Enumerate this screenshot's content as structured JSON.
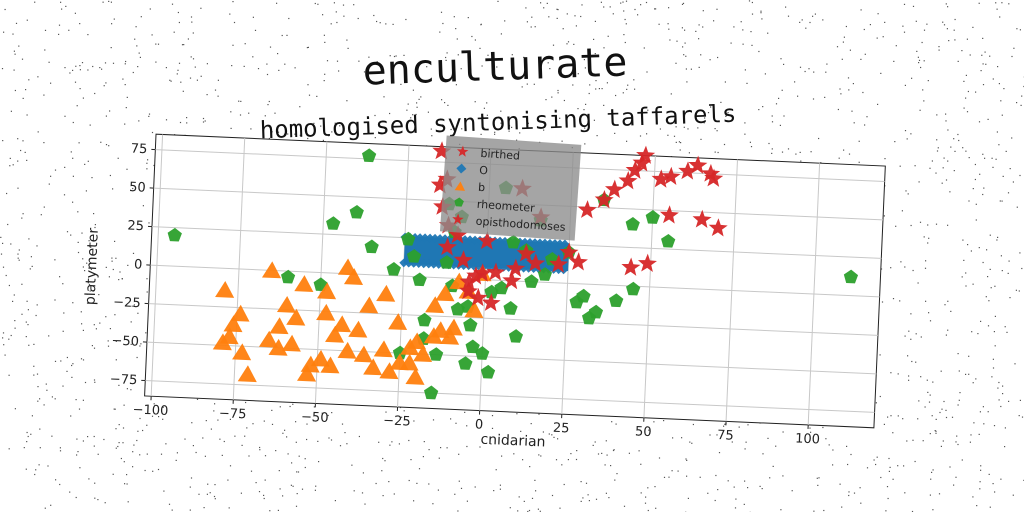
{
  "chart_data": {
    "type": "scatter",
    "title": "enculturate",
    "subtitle": "homologised syntonising taffarels",
    "xlabel": "cnidarian",
    "ylabel": "platymeter",
    "xlim": [
      -102,
      120
    ],
    "ylim": [
      -85,
      85
    ],
    "xticks": [
      -100,
      -75,
      -50,
      -25,
      0,
      25,
      50,
      75,
      100
    ],
    "yticks": [
      -75,
      -50,
      -25,
      0,
      25,
      50,
      75
    ],
    "grid": true,
    "legend_position": "top-center",
    "series": [
      {
        "name": "birthed",
        "marker": "star",
        "color": "#d62728",
        "points": [
          [
            -15,
            82
          ],
          [
            -13,
            64
          ],
          [
            -14,
            46
          ],
          [
            -12,
            34
          ],
          [
            -9,
            28
          ],
          [
            -12,
            20
          ],
          [
            -7,
            12
          ],
          [
            -5,
            -2
          ],
          [
            -3,
            2
          ],
          [
            -1,
            4
          ],
          [
            3,
            5
          ],
          [
            8,
            0
          ],
          [
            9,
            8
          ],
          [
            12,
            18
          ],
          [
            15,
            12
          ],
          [
            22,
            12
          ],
          [
            25,
            20
          ],
          [
            28,
            14
          ],
          [
            10,
            60
          ],
          [
            16,
            42
          ],
          [
            30,
            48
          ],
          [
            35,
            55
          ],
          [
            38,
            62
          ],
          [
            42,
            68
          ],
          [
            44,
            75
          ],
          [
            46,
            80
          ],
          [
            47,
            85
          ],
          [
            52,
            70
          ],
          [
            55,
            72
          ],
          [
            60,
            76
          ],
          [
            63,
            80
          ],
          [
            67,
            75
          ],
          [
            68,
            72
          ],
          [
            55,
            47
          ],
          [
            65,
            45
          ],
          [
            70,
            40
          ],
          [
            44,
            12
          ],
          [
            49,
            15
          ],
          [
            -15,
            60
          ],
          [
            -2,
            -12
          ],
          [
            -5,
            -8
          ],
          [
            2,
            -15
          ],
          [
            0,
            25
          ]
        ]
      },
      {
        "name": "b",
        "marker": "triangle",
        "color": "#ff7f0e",
        "points": [
          [
            -79,
            -14
          ],
          [
            -74,
            -29
          ],
          [
            -76,
            -36
          ],
          [
            -77,
            -44
          ],
          [
            -79,
            -48
          ],
          [
            -73,
            -54
          ],
          [
            -71,
            -68
          ],
          [
            -65,
            -45
          ],
          [
            -62,
            -50
          ],
          [
            -60,
            -22
          ],
          [
            -62,
            -36
          ],
          [
            -57,
            -30
          ],
          [
            -58,
            -47
          ],
          [
            -53,
            -66
          ],
          [
            -52,
            -60
          ],
          [
            -49,
            -56
          ],
          [
            -45,
            -40
          ],
          [
            -46,
            -60
          ],
          [
            -48,
            -26
          ],
          [
            -43,
            -33
          ],
          [
            -41,
            -50
          ],
          [
            -38,
            -36
          ],
          [
            -36,
            -52
          ],
          [
            -33,
            -60
          ],
          [
            -30,
            -48
          ],
          [
            -28,
            -62
          ],
          [
            -25,
            -56
          ],
          [
            -22,
            -46
          ],
          [
            -22,
            -56
          ],
          [
            -20,
            -42
          ],
          [
            -18,
            -50
          ],
          [
            -15,
            -38
          ],
          [
            -13,
            -34
          ],
          [
            -10,
            -38
          ],
          [
            -15,
            -18
          ],
          [
            -12,
            -10
          ],
          [
            -8,
            -2
          ],
          [
            -5,
            -8
          ],
          [
            -3,
            -20
          ],
          [
            -1,
            4
          ],
          [
            -9,
            -32
          ],
          [
            -42,
            4
          ],
          [
            -55,
            -8
          ],
          [
            -48,
            -12
          ],
          [
            -65,
            0
          ],
          [
            -35,
            -20
          ],
          [
            -30,
            -12
          ],
          [
            -40,
            -2
          ],
          [
            -26,
            -30
          ],
          [
            -20,
            -65
          ]
        ]
      },
      {
        "name": "rheometer",
        "marker": "pentagon",
        "color": "#2ca02c",
        "points": [
          [
            -95,
            20
          ],
          [
            -47,
            32
          ],
          [
            -37,
            77
          ],
          [
            -35,
            18
          ],
          [
            -28,
            4
          ],
          [
            -24,
            24
          ],
          [
            -22,
            13
          ],
          [
            -20,
            -2
          ],
          [
            -18,
            -28
          ],
          [
            -18,
            -40
          ],
          [
            -12,
            48
          ],
          [
            -10,
            30
          ],
          [
            -12,
            10
          ],
          [
            -10,
            -5
          ],
          [
            -8,
            -20
          ],
          [
            -5,
            -18
          ],
          [
            -4,
            -30
          ],
          [
            -3,
            -44
          ],
          [
            0,
            -48
          ],
          [
            2,
            -60
          ],
          [
            -5,
            -55
          ],
          [
            2,
            -8
          ],
          [
            5,
            -5
          ],
          [
            8,
            -18
          ],
          [
            10,
            -36
          ],
          [
            14,
            0
          ],
          [
            18,
            5
          ],
          [
            20,
            15
          ],
          [
            25,
            20
          ],
          [
            28,
            -12
          ],
          [
            30,
            -8
          ],
          [
            32,
            -22
          ],
          [
            34,
            -18
          ],
          [
            40,
            -10
          ],
          [
            44,
            40
          ],
          [
            45,
            -2
          ],
          [
            50,
            45
          ],
          [
            55,
            30
          ],
          [
            -14,
            -50
          ],
          [
            -15,
            -75
          ],
          [
            -25,
            -50
          ],
          [
            -60,
            -4
          ],
          [
            -50,
            -8
          ],
          [
            12,
            20
          ],
          [
            8,
            25
          ],
          [
            16,
            40
          ],
          [
            111,
            12
          ],
          [
            35,
            55
          ],
          [
            -40,
            40
          ],
          [
            5,
            60
          ],
          [
            -8,
            40
          ]
        ]
      },
      {
        "name": "opisthodomoses",
        "marker": "diamond",
        "color": "#1f77b4",
        "band": {
          "x_from": -25,
          "x_to": 25,
          "y_from": 8,
          "y_to": 26
        }
      }
    ]
  }
}
